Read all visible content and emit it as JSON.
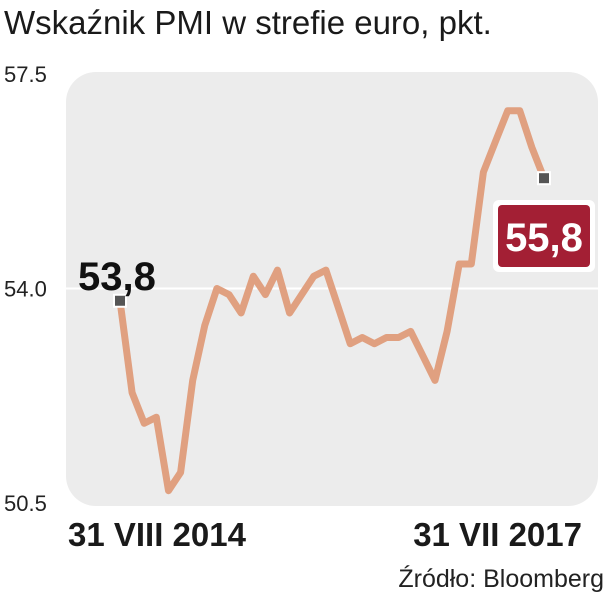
{
  "title": "Wskaźnik PMI w strefie euro, pkt.",
  "source": "Źródło: Bloomberg",
  "colors": {
    "line": "#e0a080",
    "plot_bg": "#ececec",
    "grid": "#ffffff",
    "badge": "#a31f34",
    "marker": "#555555"
  },
  "chart_data": {
    "type": "line",
    "title": "Wskaźnik PMI w strefie euro, pkt.",
    "xlabel": "",
    "ylabel": "",
    "ylim": [
      50.5,
      57.5
    ],
    "yticks": [
      57.5,
      54.0,
      50.5
    ],
    "ytick_labels": [
      "57.5",
      "54.0",
      "50.5"
    ],
    "xtick_labels": [
      "31 VIII 2014",
      "31 VII 2017"
    ],
    "grid": true,
    "series": [
      {
        "values": [
          53.8,
          52.3,
          51.8,
          51.9,
          50.7,
          51.0,
          52.5,
          53.4,
          54.0,
          53.9,
          53.6,
          54.2,
          53.9,
          54.3,
          53.6,
          53.9,
          54.2,
          54.3,
          53.7,
          53.1,
          53.2,
          53.1,
          53.2,
          53.2,
          53.3,
          52.9,
          52.5,
          53.3,
          54.4,
          54.4,
          55.9,
          56.4,
          56.9,
          56.9,
          56.3,
          55.8
        ],
        "start_label": "53,8",
        "end_label": "55,8"
      }
    ]
  }
}
